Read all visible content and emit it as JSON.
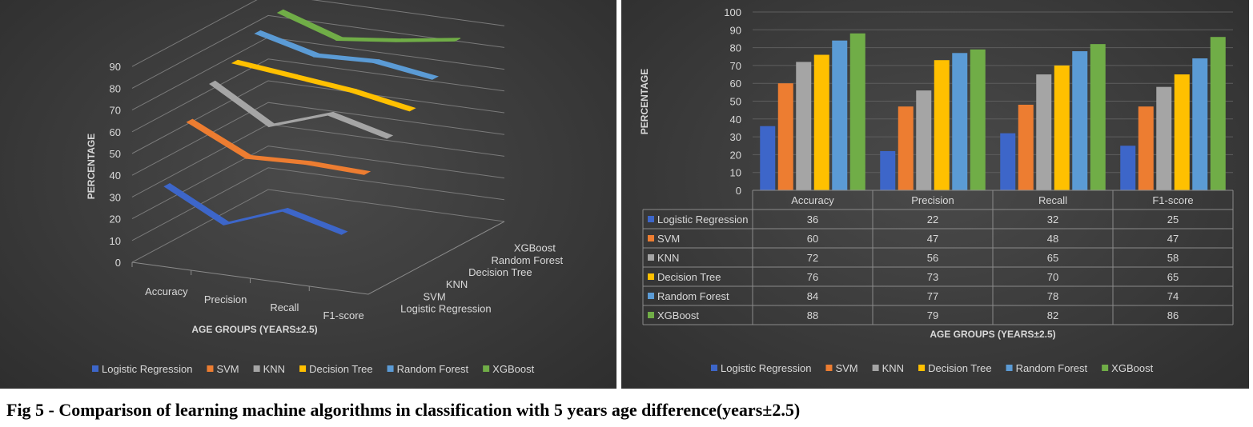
{
  "caption": "Fig 5 - Comparison of learning machine algorithms in classification with 5 years age difference(years±2.5)",
  "colors": {
    "Logistic Regression": "#3d66c9",
    "SVM": "#ed7d31",
    "KNN": "#a5a5a5",
    "Decision Tree": "#ffc000",
    "Random Forest": "#5b9bd5",
    "XGBoost": "#70ad47"
  },
  "chart_data": [
    {
      "type": "line",
      "view": "3d",
      "title": "",
      "xlabel": "AGE GROUPS (YEARS±2.5)",
      "ylabel": "PERCENTAGE",
      "categories": [
        "Accuracy",
        "Precision",
        "Recall",
        "F1-score"
      ],
      "depth_labels": [
        "Logistic Regression",
        "SVM",
        "KNN",
        "Decision Tree",
        "Random Forest",
        "XGBoost"
      ],
      "ylim": [
        0,
        90
      ],
      "yticks": [
        0,
        10,
        20,
        30,
        40,
        50,
        60,
        70,
        80,
        90
      ],
      "legend": "bottom",
      "series": [
        {
          "name": "Logistic Regression",
          "values": [
            36,
            22,
            32,
            25
          ]
        },
        {
          "name": "SVM",
          "values": [
            60,
            47,
            48,
            47
          ]
        },
        {
          "name": "KNN",
          "values": [
            72,
            56,
            65,
            58
          ]
        },
        {
          "name": "Decision Tree",
          "values": [
            76,
            73,
            70,
            65
          ]
        },
        {
          "name": "Random Forest",
          "values": [
            84,
            77,
            78,
            74
          ]
        },
        {
          "name": "XGBoost",
          "values": [
            88,
            79,
            82,
            86
          ]
        }
      ]
    },
    {
      "type": "bar",
      "title": "",
      "xlabel": "AGE GROUPS (YEARS±2.5)",
      "ylabel": "PERCENTAGE",
      "categories": [
        "Accuracy",
        "Precision",
        "Recall",
        "F1-score"
      ],
      "ylim": [
        0,
        100
      ],
      "yticks": [
        0,
        10,
        20,
        30,
        40,
        50,
        60,
        70,
        80,
        90,
        100
      ],
      "legend": "bottom",
      "data_table": true,
      "series": [
        {
          "name": "Logistic Regression",
          "values": [
            36,
            22,
            32,
            25
          ]
        },
        {
          "name": "SVM",
          "values": [
            60,
            47,
            48,
            47
          ]
        },
        {
          "name": "KNN",
          "values": [
            72,
            56,
            65,
            58
          ]
        },
        {
          "name": "Decision Tree",
          "values": [
            76,
            73,
            70,
            65
          ]
        },
        {
          "name": "Random Forest",
          "values": [
            84,
            77,
            78,
            74
          ]
        },
        {
          "name": "XGBoost",
          "values": [
            88,
            79,
            82,
            86
          ]
        }
      ]
    }
  ]
}
